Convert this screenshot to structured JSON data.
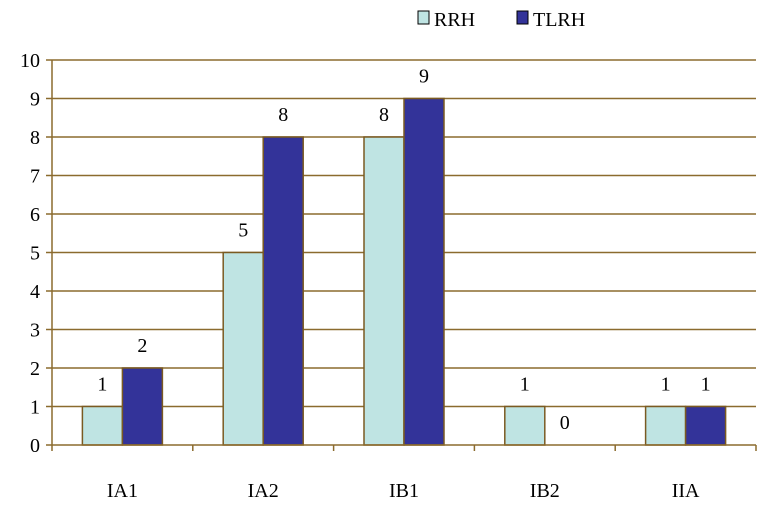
{
  "chart_data": {
    "type": "bar",
    "categories": [
      "IA1",
      "IA2",
      "IB1",
      "IB2",
      "IIA"
    ],
    "series": [
      {
        "name": "RRH",
        "values": [
          1,
          5,
          8,
          1,
          1
        ],
        "color": "#bfe4e3"
      },
      {
        "name": "TLRH",
        "values": [
          2,
          8,
          9,
          0,
          1
        ],
        "color": "#333399"
      }
    ],
    "ylim": [
      0,
      10
    ],
    "yticks": [
      0,
      1,
      2,
      3,
      4,
      5,
      6,
      7,
      8,
      9,
      10
    ],
    "grid": true,
    "grid_color": "#8b6b2e",
    "bar_border_color": "#7a5a22",
    "legend_position": "top",
    "data_labels": true
  }
}
